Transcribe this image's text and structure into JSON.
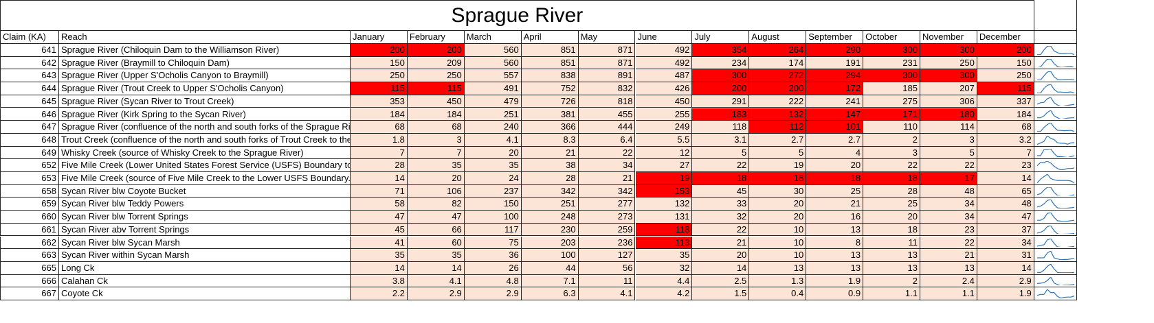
{
  "title": "Sprague River",
  "columns": [
    "Claim (KA)",
    "Reach",
    "January",
    "February",
    "March",
    "April",
    "May",
    "June",
    "July",
    "August",
    "September",
    "October",
    "November",
    "December"
  ],
  "cell_color": "#fce4d6",
  "highlight_color": "#ff0000",
  "sparkline_color": "#2e75b6",
  "rows": [
    {
      "claim": 641,
      "reach": "Sprague River (Chiloquin Dam to the Williamson River)",
      "values": [
        200,
        200,
        560,
        851,
        871,
        492,
        354,
        264,
        290,
        300,
        300,
        200
      ],
      "highlighted": [
        0,
        1,
        6,
        7,
        8,
        9,
        10,
        11
      ]
    },
    {
      "claim": 642,
      "reach": "Sprague River (Braymill to Chiloquin Dam)",
      "values": [
        150,
        209,
        560,
        851,
        871,
        492,
        234,
        174,
        191,
        231,
        250,
        150
      ],
      "highlighted": []
    },
    {
      "claim": 643,
      "reach": "Sprague River (Upper S'Ocholis Canyon to Braymill)",
      "values": [
        250,
        250,
        557,
        838,
        891,
        487,
        300,
        272,
        294,
        300,
        300,
        250
      ],
      "highlighted": [
        6,
        7,
        8,
        9,
        10
      ]
    },
    {
      "claim": 644,
      "reach": "Sprague River (Trout Creek to Upper S'Ocholis Canyon)",
      "values": [
        115,
        115,
        491,
        752,
        832,
        426,
        200,
        200,
        172,
        185,
        207,
        115
      ],
      "highlighted": [
        0,
        1,
        6,
        7,
        8,
        11
      ]
    },
    {
      "claim": 645,
      "reach": "Sprague River (Sycan River to Trout Creek)",
      "values": [
        353,
        450,
        479,
        726,
        818,
        450,
        291,
        222,
        241,
        275,
        306,
        337
      ],
      "highlighted": []
    },
    {
      "claim": 646,
      "reach": "Sprague River (Kirk Spring to the Sycan River)",
      "values": [
        184,
        184,
        251,
        381,
        455,
        255,
        183,
        132,
        147,
        171,
        180,
        184
      ],
      "highlighted": [
        6,
        7,
        8,
        9,
        10
      ]
    },
    {
      "claim": 647,
      "reach": "Sprague River (confluence of the north and south forks of the Sprague River to",
      "values": [
        68,
        68,
        240,
        366,
        444,
        249,
        118,
        112,
        101,
        110,
        114,
        68
      ],
      "highlighted": [
        7,
        8
      ]
    },
    {
      "claim": 648,
      "reach": "Trout Creek (confluence of the north and south forks of Trout Creek to the Spra",
      "values": [
        1.8,
        3,
        4.1,
        8.3,
        6.4,
        5.5,
        3.1,
        2.7,
        2.7,
        2,
        3,
        3.2
      ],
      "highlighted": []
    },
    {
      "claim": 649,
      "reach": "Whisky Creek (source of Whisky Creek to the Sprague River)",
      "values": [
        7,
        7,
        20,
        21,
        22,
        12,
        5,
        5,
        4,
        3,
        5,
        7
      ],
      "highlighted": []
    },
    {
      "claim": 652,
      "reach": "Five Mile Creek (Lower United States Forest Service (USFS) Boundary to the No",
      "values": [
        28,
        35,
        35,
        38,
        34,
        27,
        22,
        19,
        20,
        22,
        22,
        23
      ],
      "highlighted": []
    },
    {
      "claim": 653,
      "reach": "Five Mile Creek (source of Five Mile Creek to the Lower USFS Boundary.)",
      "values": [
        14,
        20,
        24,
        28,
        21,
        19,
        18,
        18,
        18,
        18,
        17,
        14
      ],
      "highlighted": [
        5,
        6,
        7,
        8,
        9,
        10
      ]
    },
    {
      "claim": 658,
      "reach": "Sycan River blw Coyote Bucket",
      "values": [
        71,
        106,
        237,
        342,
        342,
        153,
        45,
        30,
        25,
        28,
        48,
        65
      ],
      "highlighted": [
        5
      ]
    },
    {
      "claim": 659,
      "reach": "Sycan River blw Teddy Powers",
      "values": [
        58,
        82,
        150,
        251,
        277,
        132,
        33,
        20,
        21,
        25,
        34,
        48
      ],
      "highlighted": []
    },
    {
      "claim": 660,
      "reach": "Sycan River blw Torrent Springs",
      "values": [
        47,
        47,
        100,
        248,
        273,
        131,
        32,
        20,
        16,
        20,
        34,
        47
      ],
      "highlighted": []
    },
    {
      "claim": 661,
      "reach": "Sycan River abv Torrent Springs",
      "values": [
        45,
        66,
        117,
        230,
        259,
        118,
        22,
        10,
        13,
        18,
        23,
        37
      ],
      "highlighted": [
        5
      ]
    },
    {
      "claim": 662,
      "reach": "Sycan River blw Sycan Marsh",
      "values": [
        41,
        60,
        75,
        203,
        236,
        113,
        21,
        10,
        8,
        11,
        22,
        34
      ],
      "highlighted": [
        5
      ]
    },
    {
      "claim": 663,
      "reach": "Sycan River within Sycan Marsh",
      "values": [
        35,
        35,
        36,
        100,
        127,
        35,
        20,
        10,
        13,
        13,
        21,
        31
      ],
      "highlighted": []
    },
    {
      "claim": 665,
      "reach": "Long Ck",
      "values": [
        14,
        14,
        26,
        44,
        56,
        32,
        14,
        13,
        13,
        13,
        13,
        14
      ],
      "highlighted": []
    },
    {
      "claim": 666,
      "reach": "Calahan Ck",
      "values": [
        3.8,
        4.1,
        4.8,
        7.1,
        11,
        4.4,
        2.5,
        1.3,
        1.9,
        2,
        2.4,
        2.9
      ],
      "highlighted": []
    },
    {
      "claim": 667,
      "reach": "Coyote Ck",
      "values": [
        2.2,
        2.9,
        2.9,
        6.3,
        4.1,
        4.2,
        1.5,
        0.4,
        0.9,
        1.1,
        1.1,
        1.9
      ],
      "highlighted": []
    }
  ]
}
